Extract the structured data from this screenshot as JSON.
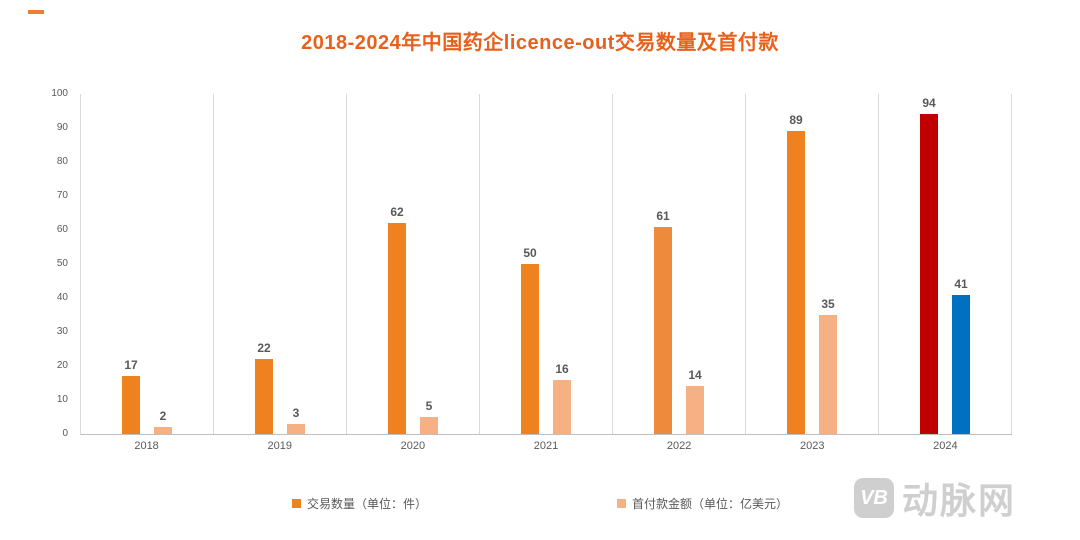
{
  "title": "2018-2024年中国药企licence-out交易数量及首付款",
  "title_color": "#E8611C",
  "accent_color": "#ED7D31",
  "chart_data": {
    "type": "bar",
    "title": "2018-2024年中国药企licence-out交易数量及首付款",
    "categories": [
      "2018",
      "2019",
      "2020",
      "2021",
      "2022",
      "2023",
      "2024"
    ],
    "series": [
      {
        "name": "交易数量（单位：件）",
        "key": "deal-count",
        "values": [
          17,
          22,
          62,
          50,
          61,
          89,
          94
        ],
        "colors": [
          "#F0811F",
          "#F0811F",
          "#F0811F",
          "#F0811F",
          "#ED8A3C",
          "#F0811F",
          "#C00000"
        ],
        "base_color": "#F0811F",
        "highlight_2024": "#C00000"
      },
      {
        "name": "首付款金额（单位：亿美元）",
        "key": "upfront-payment",
        "values": [
          2,
          3,
          5,
          16,
          14,
          35,
          41
        ],
        "colors": [
          "#F5B183",
          "#F5B183",
          "#F5B183",
          "#F5B183",
          "#F5B183",
          "#F5B183",
          "#0070C0"
        ],
        "base_color": "#F5B183",
        "highlight_2024": "#0070C0"
      }
    ],
    "xlabel": "",
    "ylabel": "",
    "ylim": [
      0,
      100
    ],
    "yticks": [
      0,
      10,
      20,
      30,
      40,
      50,
      60,
      70,
      80,
      90,
      100
    ],
    "grid": "vertical-category-separators",
    "legend_position": "bottom"
  },
  "legend": [
    {
      "label": "交易数量（单位：件）",
      "color": "#F0811F"
    },
    {
      "label": "首付款金额（单位：亿美元）",
      "color": "#F5B183"
    }
  ],
  "watermark": {
    "logo_text": "VB",
    "brand_text": "动脉网",
    "color": "#cfcfcf"
  }
}
